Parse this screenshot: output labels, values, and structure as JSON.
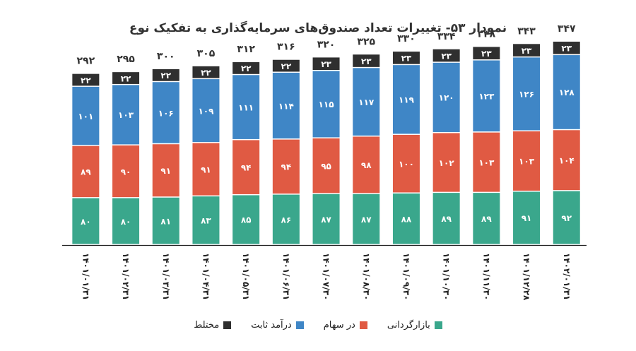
{
  "chart_data": {
    "type": "bar",
    "stacked": true,
    "title": "نمودار ۵۳- تغییرات تعداد صندوق‌های سرمایه‌گذاری به تفکیک نوع",
    "categories": [
      "۱۴۰۱/۰۱/۳۱",
      "۱۴۰۱/۰۲/۳۱",
      "۱۴۰۱/۰۳/۳۱",
      "۱۴۰۱/۰۴/۳۱",
      "۱۴۰۱/۰۵/۳۱",
      "۱۴۰۱/۰۶/۳۱",
      "۱۴۰۱/۰۷/۳۰",
      "۱۴۰۱/۰۸/۳۰",
      "۱۴۰۱/۰۹/۳۰",
      "۱۴۰۱/۱۰/۳۰",
      "۱۴۰۱/۱۱/۳۰",
      "۱۴۰۱/۱۲/۲۸",
      "۱۴۰۲/۰۱/۳۱"
    ],
    "series": [
      {
        "name": "بازارگردانی",
        "color": "#3aa78c",
        "values": [
          80,
          80,
          81,
          83,
          85,
          86,
          87,
          87,
          88,
          89,
          89,
          91,
          92
        ]
      },
      {
        "name": "در سهام",
        "color": "#e05a43",
        "values": [
          89,
          90,
          91,
          91,
          94,
          94,
          95,
          98,
          100,
          102,
          103,
          103,
          104
        ]
      },
      {
        "name": "درآمد ثابت",
        "color": "#3f86c6",
        "values": [
          101,
          103,
          106,
          109,
          111,
          114,
          115,
          117,
          119,
          120,
          123,
          126,
          128
        ]
      },
      {
        "name": "مختلط",
        "color": "#2f2f2f",
        "values": [
          22,
          22,
          22,
          22,
          22,
          22,
          23,
          23,
          23,
          23,
          23,
          23,
          23
        ]
      }
    ],
    "totals": [
      292,
      295,
      300,
      305,
      312,
      316,
      320,
      325,
      330,
      334,
      338,
      343,
      347
    ],
    "legend_position": "bottom",
    "grid": false
  }
}
